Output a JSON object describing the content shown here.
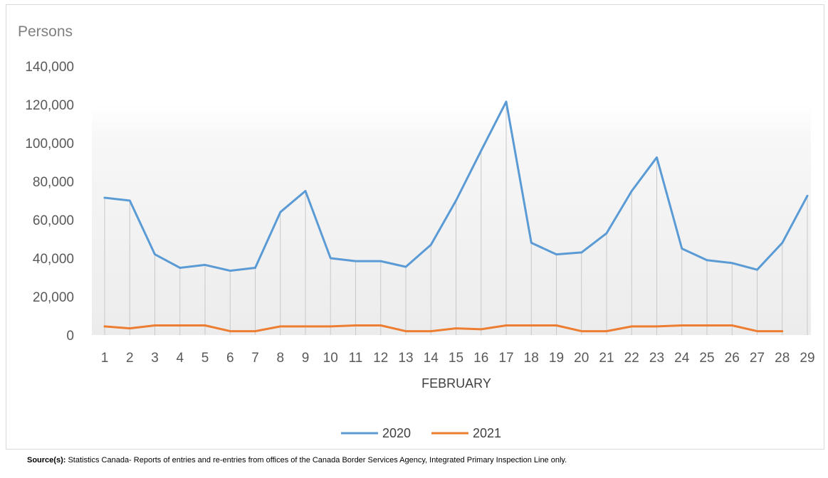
{
  "chart_data": {
    "type": "line",
    "unit_label": "Persons",
    "xlabel": "FEBRUARY",
    "ylabel": "",
    "ylim": [
      0,
      140000
    ],
    "y_ticks": [
      "0",
      "20,000",
      "40,000",
      "60,000",
      "80,000",
      "100,000",
      "120,000",
      "140,000"
    ],
    "y_tick_values": [
      0,
      20000,
      40000,
      60000,
      80000,
      100000,
      120000,
      140000
    ],
    "categories": [
      "1",
      "2",
      "3",
      "4",
      "5",
      "6",
      "7",
      "8",
      "9",
      "10",
      "11",
      "12",
      "13",
      "14",
      "15",
      "16",
      "17",
      "18",
      "19",
      "20",
      "21",
      "22",
      "23",
      "24",
      "25",
      "26",
      "27",
      "28",
      "29"
    ],
    "series": [
      {
        "name": "2020",
        "color": "#5b9bd5",
        "values": [
          71500,
          70000,
          42000,
          35000,
          36500,
          33500,
          35000,
          64000,
          75000,
          40000,
          38500,
          38500,
          35500,
          47000,
          70000,
          96000,
          121500,
          48000,
          42000,
          43000,
          53000,
          75000,
          92500,
          45000,
          39000,
          37500,
          34000,
          48000,
          72500
        ]
      },
      {
        "name": "2021",
        "color": "#ed7d31",
        "values": [
          4500,
          3500,
          5000,
          5000,
          5000,
          2000,
          2000,
          4500,
          4500,
          4500,
          5000,
          5000,
          2000,
          2000,
          3500,
          3000,
          5000,
          5000,
          5000,
          2000,
          2000,
          4500,
          4500,
          5000,
          5000,
          5000,
          2000,
          2000,
          null
        ]
      }
    ],
    "grid": false,
    "drop_lines": true,
    "legend_position": "bottom"
  },
  "source": {
    "label": "Source(s):",
    "text": " Statistics Canada- Reports of entries and re-entries from offices of the Canada Border Services Agency, Integrated Primary Inspection Line only."
  }
}
